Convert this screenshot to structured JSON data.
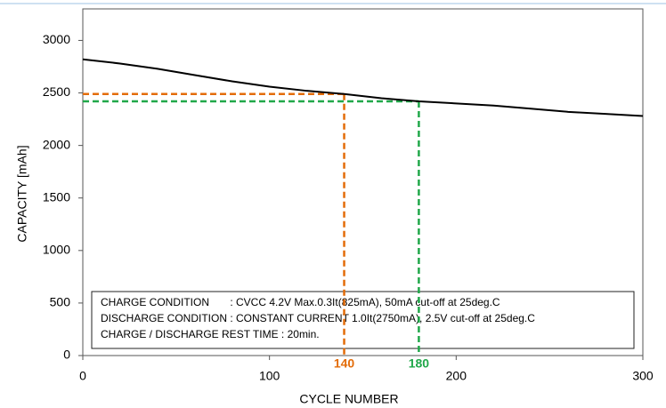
{
  "chart_data": {
    "type": "line",
    "x_label": "CYCLE NUMBER",
    "y_label": "CAPACITY  [mAh]",
    "x": [
      0,
      20,
      40,
      60,
      80,
      100,
      120,
      140,
      160,
      180,
      200,
      220,
      240,
      260,
      280,
      300
    ],
    "series": [
      {
        "color": "#000000",
        "values": [
          2820,
          2780,
          2730,
          2670,
          2610,
          2560,
          2520,
          2490,
          2450,
          2420,
          2400,
          2380,
          2350,
          2320,
          2300,
          2280
        ]
      }
    ],
    "xlim": [
      0,
      300
    ],
    "xticks": [
      0,
      100,
      200,
      300
    ],
    "ylim": [
      0,
      3300
    ],
    "yticks": [
      0,
      500,
      1000,
      1500,
      2000,
      2500,
      3000
    ],
    "grid": false,
    "markers": [
      {
        "x": 140,
        "y": 2490,
        "color": "#e36c09"
      },
      {
        "x": 180,
        "y": 2420,
        "color": "#21a84a"
      }
    ],
    "notes": [
      "CHARGE CONDITION       : CVCC 4.2V Max.0.3It(825mA), 50mA cut-off at 25deg.C",
      "DISCHARGE CONDITION : CONSTANT CURRENT 1.0It(2750mA), 2.5V cut-off at 25deg.C",
      "CHARGE / DISCHARGE REST TIME : 20min."
    ]
  }
}
